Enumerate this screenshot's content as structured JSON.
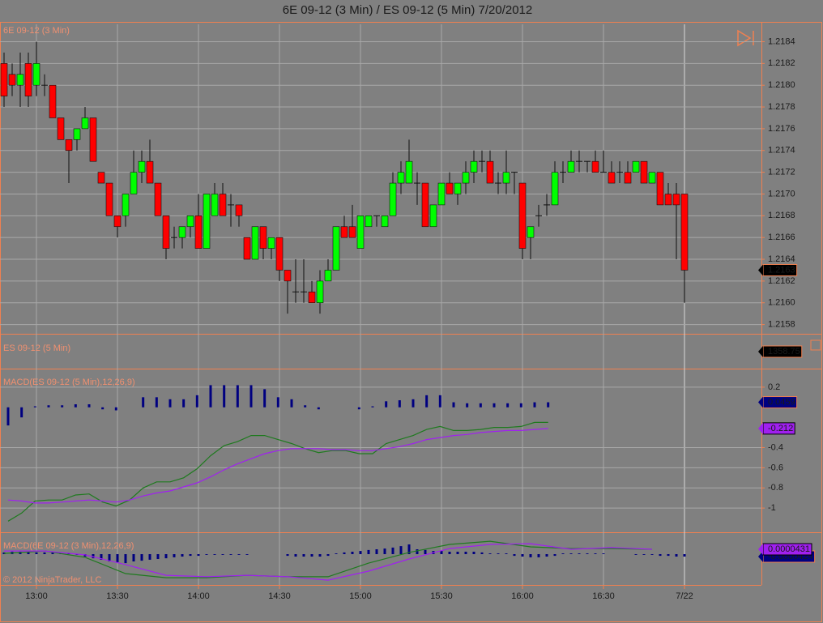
{
  "title": "6E 09-12 (3 Min) / ES 09-12 (5 Min)  7/20/2012",
  "copyright": "© 2012 NinjaTrader, LLC",
  "xticks": [
    {
      "value": 4,
      "label": "13:00"
    },
    {
      "value": 14,
      "label": "13:30"
    },
    {
      "value": 24,
      "label": "14:00"
    },
    {
      "value": 34,
      "label": "14:30"
    },
    {
      "value": 44,
      "label": "15:00"
    },
    {
      "value": 54,
      "label": "15:30"
    },
    {
      "value": 64,
      "label": "16:00"
    },
    {
      "value": 74,
      "label": "16:30"
    },
    {
      "value": 84,
      "label": "7/22"
    }
  ],
  "chart_data": [
    {
      "type": "candlestick",
      "title": "6E 09-12 (3 Min)",
      "last_label": "1.2163",
      "up_color": "#00ff00",
      "down_color": "#ff0000",
      "ylim": [
        1.21573,
        1.21856
      ],
      "yticks": [
        1.2158,
        {
          "value": 1.216,
          "label": "1.2160"
        },
        1.2162,
        1.2164,
        1.2166,
        1.2168,
        {
          "value": 1.217,
          "label": "1.2170"
        },
        1.2172,
        1.2174,
        1.2176,
        1.2178,
        {
          "value": 1.218,
          "label": "1.2180"
        },
        1.2182,
        1.2184
      ],
      "grid": true,
      "open": [
        1.2182,
        1.2181,
        1.218,
        1.2182,
        1.218,
        1.218,
        1.218,
        1.2177,
        1.2175,
        1.2175,
        1.2176,
        1.2177,
        1.2172,
        1.2171,
        1.2168,
        1.2168,
        1.217,
        1.2172,
        1.2173,
        1.2171,
        1.2168,
        1.2166,
        1.2166,
        1.2167,
        1.2168,
        1.2165,
        1.2168,
        1.217,
        1.2169,
        1.2169,
        1.2166,
        1.2164,
        1.2167,
        1.2165,
        1.2166,
        1.2163,
        1.2161,
        1.2161,
        1.2161,
        1.216,
        1.2162,
        1.2163,
        1.2167,
        1.2167,
        1.2165,
        1.2167,
        1.2168,
        1.2167,
        1.2168,
        1.2171,
        1.2171,
        1.2171,
        1.2171,
        1.2167,
        1.2169,
        1.2171,
        1.217,
        1.2171,
        1.2172,
        1.2173,
        1.2173,
        1.2171,
        1.2171,
        1.2172,
        1.2171,
        1.2166,
        1.2168,
        1.2169,
        1.2169,
        1.2172,
        1.2172,
        1.2173,
        1.2173,
        1.2173,
        1.2172,
        1.2172,
        1.2172,
        1.2172,
        1.2172,
        1.2173,
        1.2171,
        1.2172,
        1.217,
        1.217,
        1.217
      ],
      "high": [
        1.2183,
        1.2182,
        1.2183,
        1.2183,
        1.2184,
        1.2181,
        1.218,
        1.2177,
        1.2175,
        1.2176,
        1.2178,
        1.2177,
        1.2172,
        1.2171,
        1.2168,
        1.217,
        1.2174,
        1.2174,
        1.2175,
        1.2171,
        1.2168,
        1.2167,
        1.2167,
        1.2168,
        1.217,
        1.217,
        1.2171,
        1.2171,
        1.217,
        1.2169,
        1.2166,
        1.2167,
        1.2167,
        1.2166,
        1.2166,
        1.2163,
        1.2164,
        1.2164,
        1.2162,
        1.2163,
        1.2164,
        1.2167,
        1.2168,
        1.2169,
        1.2168,
        1.2168,
        1.2168,
        1.2168,
        1.2172,
        1.2173,
        1.2175,
        1.2172,
        1.2171,
        1.2169,
        1.2171,
        1.2172,
        1.2171,
        1.2173,
        1.2174,
        1.2174,
        1.2174,
        1.2172,
        1.2174,
        1.2172,
        1.2171,
        1.2167,
        1.2169,
        1.217,
        1.2173,
        1.2173,
        1.2174,
        1.2174,
        1.2173,
        1.2174,
        1.2174,
        1.2173,
        1.2173,
        1.2173,
        1.2173,
        1.2173,
        1.2172,
        1.2172,
        1.2171,
        1.2171,
        1.217
      ],
      "low": [
        1.2178,
        1.2179,
        1.2178,
        1.2178,
        1.2179,
        1.2179,
        1.2177,
        1.2175,
        1.2171,
        1.2174,
        1.2176,
        1.2173,
        1.2171,
        1.2168,
        1.2166,
        1.2167,
        1.217,
        1.2171,
        1.2171,
        1.2168,
        1.2164,
        1.2165,
        1.2165,
        1.2166,
        1.2165,
        1.2165,
        1.2168,
        1.2168,
        1.2167,
        1.2167,
        1.2164,
        1.2164,
        1.2164,
        1.2164,
        1.2162,
        1.2159,
        1.216,
        1.216,
        1.216,
        1.2159,
        1.2162,
        1.2163,
        1.2166,
        1.2166,
        1.2165,
        1.2167,
        1.2167,
        1.2167,
        1.2168,
        1.217,
        1.2171,
        1.2169,
        1.2167,
        1.2167,
        1.2169,
        1.217,
        1.2169,
        1.217,
        1.2171,
        1.2172,
        1.2171,
        1.217,
        1.217,
        1.217,
        1.2164,
        1.2164,
        1.2167,
        1.2168,
        1.2169,
        1.2171,
        1.2172,
        1.2172,
        1.2172,
        1.2172,
        1.2172,
        1.2171,
        1.2171,
        1.2171,
        1.2172,
        1.2171,
        1.2171,
        1.2169,
        1.2169,
        1.2164,
        1.216
      ],
      "close": [
        1.2179,
        1.218,
        1.2181,
        1.2179,
        1.2182,
        1.218,
        1.2177,
        1.2175,
        1.2174,
        1.2176,
        1.2177,
        1.2173,
        1.2171,
        1.2168,
        1.2167,
        1.217,
        1.2172,
        1.2173,
        1.2171,
        1.2168,
        1.2165,
        1.2166,
        1.2167,
        1.2168,
        1.2165,
        1.217,
        1.217,
        1.2168,
        1.2169,
        1.2168,
        1.2164,
        1.2167,
        1.2165,
        1.2166,
        1.2163,
        1.2162,
        1.2161,
        1.2161,
        1.216,
        1.2162,
        1.2163,
        1.2167,
        1.2166,
        1.2166,
        1.2168,
        1.2168,
        1.2168,
        1.2168,
        1.2171,
        1.2172,
        1.2173,
        1.2171,
        1.2167,
        1.2169,
        1.2171,
        1.217,
        1.2171,
        1.2172,
        1.2173,
        1.2173,
        1.2171,
        1.2171,
        1.2172,
        1.2172,
        1.2165,
        1.2167,
        1.2168,
        1.2169,
        1.2172,
        1.2172,
        1.2173,
        1.2173,
        1.2173,
        1.2172,
        1.2172,
        1.2171,
        1.2172,
        1.2171,
        1.2173,
        1.2171,
        1.2172,
        1.2169,
        1.2169,
        1.2169,
        1.2163
      ]
    },
    {
      "type": "price-panel",
      "title": "ES 09-12 (5 Min)",
      "last_label": "1358.75"
    },
    {
      "type": "macd",
      "title": "MACD(ES 09-12 (5 Min),12,26,9)",
      "ylim": [
        -1.2,
        0.36
      ],
      "yticks": [
        0.2,
        -0.4,
        -0.6,
        -0.8,
        -1
      ],
      "grid": true,
      "series": [
        {
          "kind": "histogram",
          "color": "#000080",
          "last_label": "0.0459",
          "values": [
            -0.18,
            -0.1,
            0.01,
            0.02,
            0.02,
            0.03,
            0.03,
            -0.02,
            -0.03,
            0,
            0.1,
            0.1,
            0.08,
            0.08,
            0.12,
            0.22,
            0.22,
            0.22,
            0.22,
            0.18,
            0.1,
            0.08,
            0.02,
            -0.02,
            0,
            0,
            -0.02,
            0.01,
            0.06,
            0.07,
            0.08,
            0.12,
            0.12,
            0.05,
            0.04,
            0.04,
            0.04,
            0.04,
            0.04,
            0.05,
            0.05
          ]
        },
        {
          "kind": "line",
          "color": "#1f7a1f",
          "values": [
            -1.13,
            -1.05,
            -0.93,
            -0.92,
            -0.92,
            -0.87,
            -0.86,
            -0.94,
            -0.98,
            -0.92,
            -0.8,
            -0.74,
            -0.74,
            -0.7,
            -0.61,
            -0.48,
            -0.38,
            -0.34,
            -0.28,
            -0.28,
            -0.32,
            -0.36,
            -0.41,
            -0.45,
            -0.43,
            -0.43,
            -0.46,
            -0.46,
            -0.36,
            -0.32,
            -0.28,
            -0.22,
            -0.19,
            -0.23,
            -0.23,
            -0.22,
            -0.2,
            -0.2,
            -0.19,
            -0.15,
            -0.15
          ]
        },
        {
          "kind": "line",
          "color": "#a020f0",
          "last_label": "-0.212",
          "values": [
            -0.92,
            -0.93,
            -0.95,
            -0.95,
            -0.94,
            -0.93,
            -0.92,
            -0.93,
            -0.94,
            -0.92,
            -0.88,
            -0.85,
            -0.83,
            -0.79,
            -0.75,
            -0.69,
            -0.62,
            -0.56,
            -0.51,
            -0.46,
            -0.43,
            -0.41,
            -0.41,
            -0.41,
            -0.42,
            -0.42,
            -0.43,
            -0.43,
            -0.41,
            -0.39,
            -0.36,
            -0.32,
            -0.3,
            -0.28,
            -0.27,
            -0.25,
            -0.24,
            -0.23,
            -0.23,
            -0.22,
            -0.21
          ]
        }
      ]
    },
    {
      "type": "macd",
      "title": "MACD(6E 09-12 (3 Min),12,26,9)",
      "ylim": [
        -0.00012,
        8e-05
      ],
      "series": [
        {
          "kind": "histogram",
          "color": "#000080",
          "last_label": "-0.0000424",
          "values": [
            7e-06,
            1e-05,
            1e-05,
            1e-05,
            7e-06,
            7e-06,
            7e-06,
            3e-06,
            3e-06,
            -3e-06,
            -1e-05,
            -1.7e-05,
            -2.3e-05,
            -3e-05,
            -3.3e-05,
            -3.7e-05,
            -3e-05,
            -2.7e-05,
            -2.3e-05,
            -2e-05,
            -1.7e-05,
            -1.3e-05,
            -1e-05,
            -7e-06,
            -7e-06,
            -3e-06,
            -3e-06,
            -3e-06,
            -3e-06,
            -3e-06,
            -3e-06,
            0,
            0,
            0,
            0,
            -7e-06,
            -1e-05,
            -1e-05,
            -1e-05,
            -1e-05,
            -7e-06,
            3e-06,
            7e-06,
            1e-05,
            1.3e-05,
            1.7e-05,
            2e-05,
            2.3e-05,
            2.7e-05,
            3.3e-05,
            4e-05,
            2e-05,
            1.7e-05,
            1.3e-05,
            1.3e-05,
            1e-05,
            1e-05,
            1e-05,
            1e-05,
            7e-06,
            3e-06,
            3e-06,
            3e-06,
            -7e-06,
            -1e-05,
            -1.3e-05,
            -1.3e-05,
            -1e-05,
            -7e-06,
            3e-06,
            3e-06,
            3e-06,
            3e-06,
            3e-06,
            3e-06,
            0,
            0,
            0,
            -3e-06,
            -3e-06,
            -3e-06,
            -7e-06,
            -7e-06,
            -1e-05,
            -1e-05
          ]
        },
        {
          "kind": "line",
          "color": "#1f7a1f",
          "x": [
            0,
            5,
            10,
            15,
            20,
            25,
            30,
            35,
            40,
            45,
            50,
            55,
            60,
            65,
            70,
            75,
            80
          ],
          "values": [
            3e-06,
            1.3e-05,
            -1.3e-05,
            -8e-05,
            -9.7e-05,
            -9.7e-05,
            -8.7e-05,
            -9.3e-05,
            -9.3e-05,
            -3.7e-05,
            7e-06,
            4e-05,
            5.3e-05,
            3e-05,
            2.3e-05,
            2.3e-05,
            2e-05
          ]
        },
        {
          "kind": "line",
          "color": "#a020f0",
          "last_label": "0.0000431",
          "x": [
            0,
            5,
            10,
            15,
            20,
            25,
            30,
            35,
            40,
            45,
            50,
            55,
            60,
            65,
            70,
            75,
            80
          ],
          "values": [
            1.3e-05,
            1.3e-05,
            -3e-06,
            -4.3e-05,
            -8.7e-05,
            -9.3e-05,
            -8.7e-05,
            -9.3e-05,
            -0.000107,
            -7e-05,
            -2e-05,
            2.3e-05,
            4e-05,
            4.3e-05,
            2e-05,
            2.7e-05,
            2e-05
          ]
        }
      ]
    }
  ]
}
